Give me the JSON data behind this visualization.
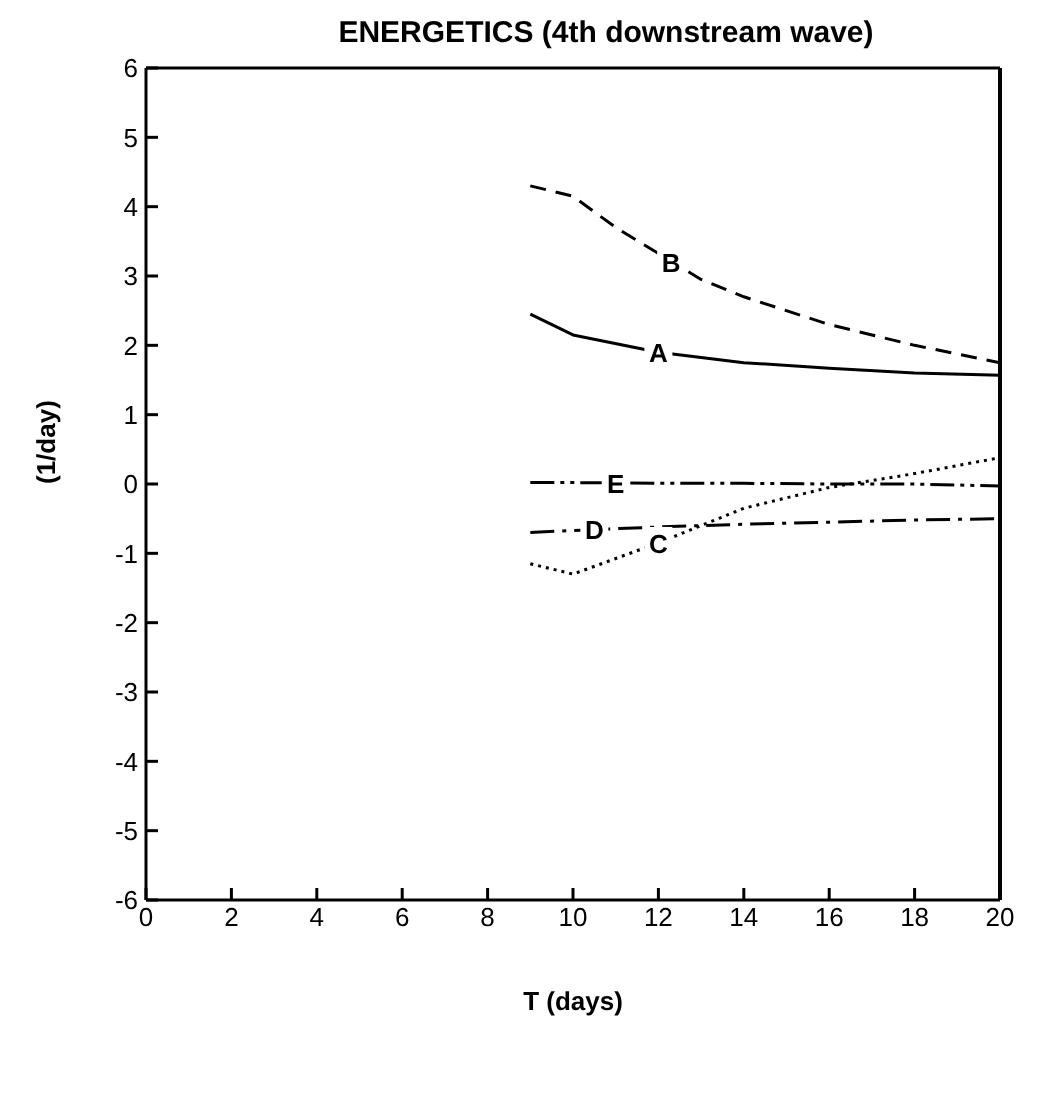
{
  "chart_data": {
    "type": "line",
    "title": "ENERGETICS (4th downstream wave)",
    "xlabel": "T  (days)",
    "ylabel": "(1/day)",
    "x": [
      9,
      10,
      12,
      14,
      16,
      18,
      20
    ],
    "series": [
      {
        "color": "#000000",
        "line_style": "solid",
        "values": [
          2.45,
          2.15,
          1.9,
          1.75,
          1.67,
          1.6,
          1.57
        ]
      },
      {
        "color": "#000000",
        "line_style": "dashed",
        "x": [
          9,
          10,
          11,
          13,
          14,
          16,
          18,
          20
        ],
        "values": [
          4.3,
          4.15,
          3.7,
          2.95,
          2.7,
          2.3,
          2.0,
          1.75
        ]
      },
      {
        "color": "#000000",
        "line_style": "dotted",
        "values": [
          -1.15,
          -1.3,
          -0.85,
          -0.35,
          -0.05,
          0.15,
          0.38
        ]
      },
      {
        "color": "#000000",
        "line_style": "dashdot",
        "values": [
          -0.7,
          -0.67,
          -0.62,
          -0.58,
          -0.55,
          -0.52,
          -0.5
        ]
      },
      {
        "color": "#000000",
        "line_style": "dashdotdot",
        "values": [
          0.02,
          0.02,
          0.01,
          0.01,
          0.0,
          0.0,
          -0.03
        ]
      }
    ],
    "annotations": [
      {
        "text": "A",
        "x": 12,
        "y": 1.9
      },
      {
        "text": "B",
        "x": 12.3,
        "y": 3.2
      },
      {
        "text": "C",
        "x": 12,
        "y": -0.85
      },
      {
        "text": "D",
        "x": 10.5,
        "y": -0.65
      },
      {
        "text": "E",
        "x": 11,
        "y": 0.01
      }
    ],
    "xlim": [
      0,
      20
    ],
    "xticks": [
      0,
      2,
      4,
      6,
      8,
      10,
      12,
      14,
      16,
      18,
      20
    ],
    "ylim": [
      -6,
      6
    ],
    "yticks": [
      -6,
      -5,
      -4,
      -3,
      -2,
      -1,
      0,
      1,
      2,
      3,
      4,
      5,
      6
    ],
    "grid": false,
    "marker": "none"
  }
}
